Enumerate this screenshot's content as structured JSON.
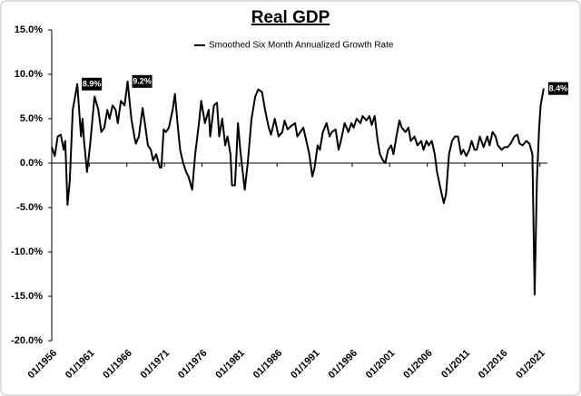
{
  "chart_data": {
    "type": "line",
    "title": "Real GDP",
    "legend": "top",
    "grid": false,
    "series": [
      {
        "name": "Smoothed Six Month Annualized Growth Rate",
        "color": "#000000",
        "x": [
          1956.0,
          1956.4,
          1956.8,
          1957.2,
          1957.6,
          1957.8,
          1958.1,
          1958.4,
          1958.8,
          1959.4,
          1959.9,
          1960.1,
          1960.3,
          1960.7,
          1961.1,
          1961.7,
          1962.2,
          1962.6,
          1963.0,
          1963.4,
          1963.7,
          1964.1,
          1964.5,
          1964.8,
          1965.2,
          1965.7,
          1966.1,
          1966.6,
          1967.0,
          1967.2,
          1967.6,
          1968.1,
          1968.4,
          1968.8,
          1969.2,
          1969.5,
          1969.9,
          1970.4,
          1970.6,
          1970.9,
          1971.2,
          1971.6,
          1972.1,
          1972.4,
          1972.8,
          1973.1,
          1973.5,
          1973.9,
          1974.2,
          1974.7,
          1975.1,
          1975.6,
          1975.9,
          1976.4,
          1976.9,
          1977.1,
          1977.6,
          1978.0,
          1978.3,
          1978.7,
          1979.1,
          1979.4,
          1979.8,
          1980.0,
          1980.4,
          1980.8,
          1981.1,
          1981.5,
          1981.7,
          1982.1,
          1982.6,
          1983.1,
          1983.5,
          1984.0,
          1984.4,
          1984.9,
          1985.2,
          1985.7,
          1986.2,
          1986.7,
          1987.0,
          1987.4,
          1987.9,
          1988.4,
          1988.7,
          1989.1,
          1989.5,
          1989.9,
          1990.3,
          1990.7,
          1991.0,
          1991.4,
          1991.7,
          1992.1,
          1992.6,
          1993.0,
          1993.3,
          1993.8,
          1994.2,
          1994.5,
          1995.0,
          1995.5,
          1995.9,
          1996.2,
          1996.6,
          1997.1,
          1997.4,
          1997.9,
          1998.3,
          1998.6,
          1999.0,
          1999.4,
          1999.7,
          2000.1,
          2000.4,
          2000.8,
          2001.2,
          2001.5,
          2001.9,
          2002.3,
          2002.6,
          2003.1,
          2003.5,
          2003.8,
          2004.3,
          2004.7,
          2005.2,
          2005.5,
          2005.9,
          2006.2,
          2006.6,
          2007.0,
          2007.3,
          2007.8,
          2008.2,
          2008.5,
          2008.9,
          2009.3,
          2009.7,
          2010.1,
          2010.5,
          2010.8,
          2011.2,
          2011.6,
          2011.9,
          2012.3,
          2012.6,
          2013.0,
          2013.5,
          2014.0,
          2014.3,
          2014.7,
          2015.1,
          2015.4,
          2015.9,
          2016.3,
          2016.7,
          2017.1,
          2017.6,
          2018.0,
          2018.3,
          2018.7,
          2019.2,
          2019.6,
          2020.0,
          2020.3,
          2020.6,
          2020.9,
          2021.1,
          2021.5
        ],
        "values": [
          1.8,
          0.8,
          3.0,
          3.2,
          1.5,
          2.5,
          -4.7,
          -2,
          6,
          8.9,
          3,
          5,
          2.5,
          -1,
          2,
          7.5,
          6,
          3.5,
          4,
          6,
          5,
          6.5,
          6,
          4.5,
          7,
          6.5,
          9.2,
          5,
          3,
          2.2,
          3,
          6.2,
          4.5,
          2,
          1.5,
          0.3,
          1,
          -0.5,
          -0.5,
          3.8,
          3.5,
          4,
          6,
          7.8,
          4,
          1.5,
          0,
          -1,
          -1.5,
          -3,
          1,
          4.5,
          7,
          4.5,
          6,
          3,
          6.5,
          6.8,
          3,
          5,
          2,
          3,
          1,
          -2.5,
          -2.5,
          4.5,
          1.5,
          -1.5,
          -3,
          0,
          5,
          7.5,
          8.3,
          8,
          6,
          4,
          3.2,
          5,
          3,
          3.5,
          4.8,
          3.8,
          4.2,
          4.5,
          3,
          3.5,
          4,
          2.5,
          1,
          -1.5,
          -0.5,
          2,
          1.5,
          3.5,
          4.5,
          3,
          3.5,
          3.8,
          1.5,
          2.5,
          4.5,
          3.5,
          4.5,
          4,
          5,
          4.5,
          5.3,
          4.8,
          5.3,
          4.3,
          5.3,
          2.5,
          1,
          0.3,
          0,
          1.5,
          2,
          1,
          3,
          4.8,
          4,
          3.5,
          4,
          2.5,
          3,
          2,
          2.5,
          1.5,
          2.5,
          2,
          2.5,
          1,
          -1,
          -3,
          -4.5,
          -3.5,
          1,
          2.5,
          3,
          3,
          1,
          1.5,
          0.8,
          1.5,
          2.5,
          1.5,
          1.5,
          3,
          1.8,
          3,
          2,
          3.5,
          3,
          2,
          1.5,
          1.8,
          1.8,
          2.2,
          3,
          3.2,
          2.2,
          2,
          2.5,
          2.2,
          1,
          -14.8,
          -2,
          4,
          6.5,
          8.4
        ]
      }
    ],
    "annotations": [
      {
        "x": 1959.4,
        "y": 8.9,
        "label": "8.9%"
      },
      {
        "x": 1966.1,
        "y": 9.2,
        "label": "9.2%"
      },
      {
        "x": 2021.5,
        "y": 8.4,
        "label": "8.4%"
      }
    ],
    "xlim": [
      1956,
      2022
    ],
    "xticks": [
      {
        "value": 1956,
        "label": "01/1956"
      },
      {
        "value": 1961,
        "label": "01/1961"
      },
      {
        "value": 1966,
        "label": "01/1966"
      },
      {
        "value": 1971,
        "label": "01/1971"
      },
      {
        "value": 1976,
        "label": "01/1976"
      },
      {
        "value": 1981,
        "label": "01/1981"
      },
      {
        "value": 1986,
        "label": "01/1986"
      },
      {
        "value": 1991,
        "label": "01/1991"
      },
      {
        "value": 1996,
        "label": "01/1996"
      },
      {
        "value": 2001,
        "label": "01/2001"
      },
      {
        "value": 2006,
        "label": "01/2006"
      },
      {
        "value": 2011,
        "label": "01/2011"
      },
      {
        "value": 2016,
        "label": "01/2016"
      },
      {
        "value": 2021,
        "label": "01/2021"
      }
    ],
    "ylim": [
      -20,
      15
    ],
    "yticks": [
      {
        "value": 15,
        "label": "15.0%"
      },
      {
        "value": 10,
        "label": "10.0%"
      },
      {
        "value": 5,
        "label": "5.0%"
      },
      {
        "value": 0,
        "label": "0.0%"
      },
      {
        "value": -5,
        "label": "-5.0%"
      },
      {
        "value": -10,
        "label": "-10.0%"
      },
      {
        "value": -15,
        "label": "-15.0%"
      },
      {
        "value": -20,
        "label": "-20.0%"
      }
    ]
  }
}
